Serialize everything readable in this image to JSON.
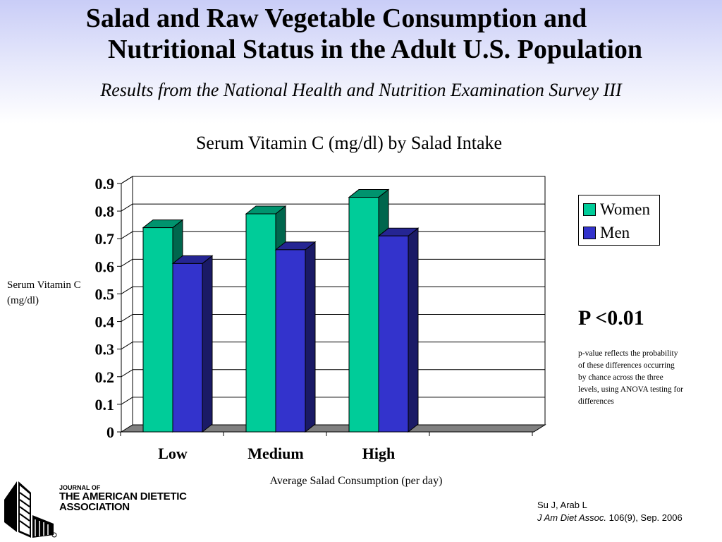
{
  "header": {
    "title_line1": "Salad and Raw Vegetable Consumption and",
    "title_line2": "Nutritional Status in the Adult U.S. Population",
    "subtitle": "Results from the National Health and Nutrition Examination Survey III"
  },
  "chart_data": {
    "type": "bar",
    "title": "Serum Vitamin C (mg/dl) by Salad Intake",
    "ylabel": "Serum Vitamin C (mg/dl)",
    "xlabel": "Average Salad Consumption (per day)",
    "categories": [
      "Low",
      "Medium",
      "High"
    ],
    "series": [
      {
        "name": "Women",
        "values": [
          0.74,
          0.79,
          0.85
        ],
        "color": "#00cc99"
      },
      {
        "name": "Men",
        "values": [
          0.61,
          0.66,
          0.71
        ],
        "color": "#3333cc"
      }
    ],
    "ylim": [
      0,
      0.9
    ],
    "yticks": [
      "0",
      "0.1",
      "0.2",
      "0.3",
      "0.4",
      "0.5",
      "0.6",
      "0.7",
      "0.8",
      "0.9"
    ],
    "grid": true,
    "style": "3d",
    "legend_position": "right"
  },
  "stats": {
    "pvalue": "P <0.01",
    "note": "p-value reflects the probability of these differences occurring by chance across the three levels, using ANOVA testing for differences"
  },
  "journal": {
    "line1": "JOURNAL OF",
    "line2": "THE AMERICAN DIETETIC",
    "line3": "ASSOCIATION",
    "logo": "journal-logo-icon"
  },
  "citation": {
    "authors": "Su J, Arab L",
    "journal": "J Am Diet Assoc.",
    "details": " 106(9), Sep. 2006"
  }
}
